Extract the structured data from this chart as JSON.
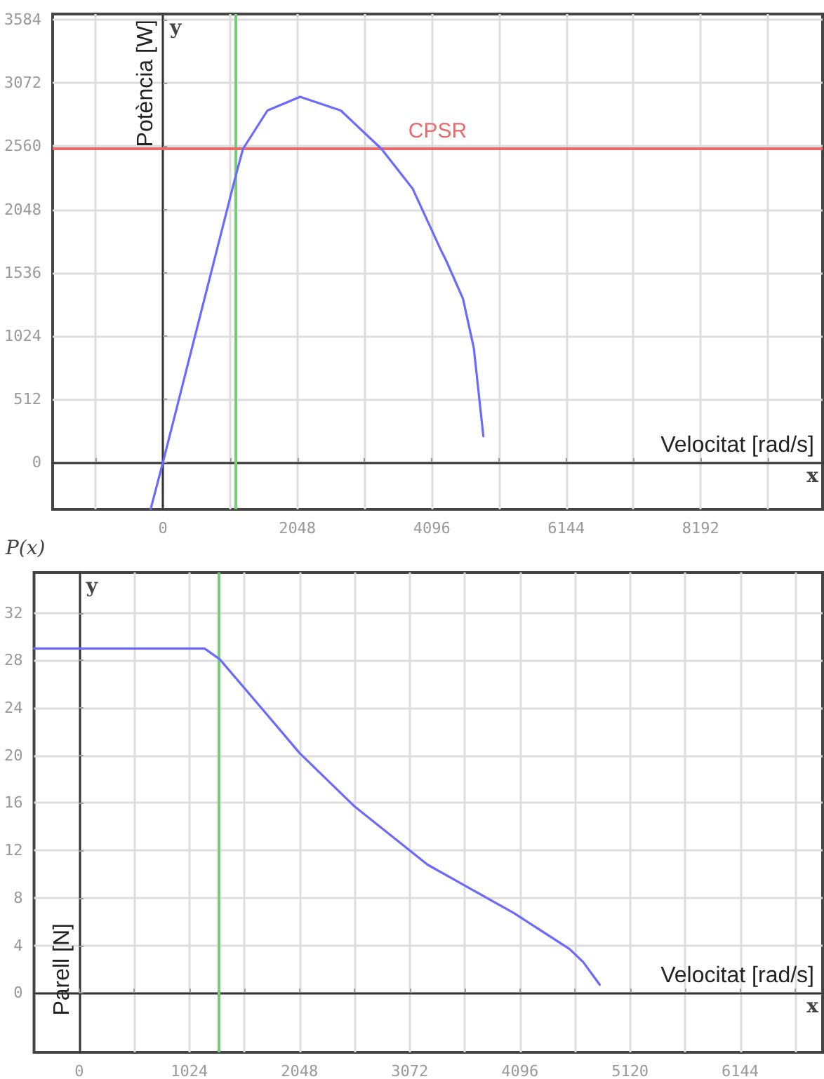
{
  "chart_data": [
    {
      "type": "line",
      "xlabel": "Velocitat [rad/s]",
      "ylabel": "Potència [W]",
      "annotations": [
        "y",
        "x"
      ],
      "x": [
        -186,
        0,
        1096,
        1220,
        1593,
        2090,
        2710,
        3330,
        3806,
        4220,
        4323,
        4572,
        4737,
        4882
      ],
      "series": [
        {
          "color": "#6a6aff",
          "values": [
            -378,
            0,
            2293,
            2538,
            2849,
            2960,
            2849,
            2538,
            2215,
            1736,
            1625,
            1325,
            924,
            211
          ]
        }
      ],
      "xlim": [
        -1680,
        10050
      ],
      "ylim": [
        -380,
        3630
      ],
      "xticks": [
        {
          "value": -1024,
          "label": null
        },
        0,
        {
          "value": 1024,
          "label": null
        },
        2048,
        {
          "value": 3072,
          "label": null
        },
        4096,
        {
          "value": 5120,
          "label": null
        },
        6144,
        {
          "value": 7168,
          "label": null
        },
        8192,
        {
          "value": 9216,
          "label": null
        }
      ],
      "yticks": [
        0,
        512,
        1024,
        1536,
        2048,
        2560,
        3072,
        3584
      ],
      "ref_lines": [
        {
          "axis": "x",
          "value": 1100,
          "color": "#77cc77"
        },
        {
          "axis": "y",
          "value": 2540,
          "label": "CPSR",
          "color": "#e86a6a"
        }
      ],
      "grid": true,
      "marker": "none",
      "line_style": "solid"
    },
    {
      "type": "line",
      "xlabel": "Velocitat [rad/s]",
      "ylabel": "Parell [N]",
      "annotations": [
        "y",
        "x",
        "P(x)"
      ],
      "x": [
        -420,
        1165,
        1306,
        1702,
        2048,
        2560,
        3238,
        3533,
        4045,
        4557,
        4685,
        4838
      ],
      "series": [
        {
          "color": "#6a6aff",
          "values": [
            29,
            29,
            28.1,
            23.9,
            20.2,
            15.7,
            10.8,
            9.3,
            6.7,
            3.7,
            2.6,
            0.7
          ]
        }
      ],
      "xlim": [
        -420,
        6910
      ],
      "ylim": [
        -5,
        35.4
      ],
      "xticks": [
        0,
        {
          "value": 512,
          "label": null
        },
        1024,
        {
          "value": 1536,
          "label": null
        },
        2048,
        {
          "value": 2560,
          "label": null
        },
        3072,
        {
          "value": 3584,
          "label": null
        },
        4096,
        {
          "value": 4608,
          "label": null
        },
        5120,
        {
          "value": 5632,
          "label": null
        },
        6144,
        {
          "value": 6656,
          "label": null
        }
      ],
      "yticks": [
        0,
        4,
        8,
        12,
        16,
        20,
        24,
        28,
        32
      ],
      "ref_lines": [
        {
          "axis": "x",
          "value": 1300,
          "color": "#77cc77"
        }
      ],
      "grid": true,
      "marker": "none",
      "line_style": "solid"
    }
  ]
}
